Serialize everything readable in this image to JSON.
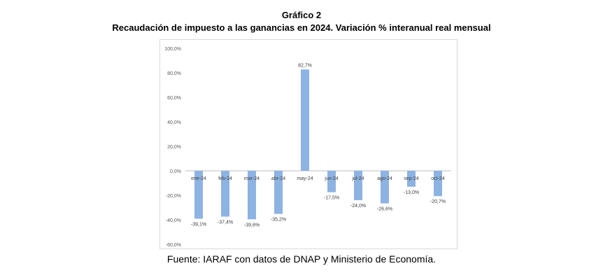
{
  "figure": {
    "label": "Gráfico 2",
    "title": "Recaudación de impuesto a las ganancias en 2024. Variación % interanual real mensual",
    "source": "Fuente: IARAF con datos de DNAP y Ministerio de Economía."
  },
  "chart_data": {
    "type": "bar",
    "title": "",
    "xlabel": "",
    "ylabel": "",
    "categories": [
      "ene-24",
      "feb-24",
      "mar-24",
      "abr-24",
      "may-24",
      "jun-24",
      "jul-24",
      "ago-24",
      "sep-24",
      "oct-24"
    ],
    "values": [
      -39.1,
      -37.4,
      -39.6,
      -35.2,
      82.7,
      -17.5,
      -24.0,
      -26.6,
      -13.0,
      -20.7
    ],
    "value_labels": [
      "-39,1%",
      "-37,4%",
      "-39,6%",
      "-35,2%",
      "82,7%",
      "-17,5%",
      "-24,0%",
      "-26,6%",
      "-13,0%",
      "-20,7%"
    ],
    "ylim": [
      -60,
      100
    ],
    "yticks": [
      -60,
      -40,
      -20,
      0,
      20,
      40,
      60,
      80,
      100
    ],
    "ytick_labels": [
      "-60,0%",
      "-40,0%",
      "-20,0%",
      "0,0%",
      "20,0%",
      "40,0%",
      "60,0%",
      "80,0%",
      "100,0%"
    ],
    "bar_color": "#8db3e2",
    "grid": false,
    "legend": "none"
  }
}
